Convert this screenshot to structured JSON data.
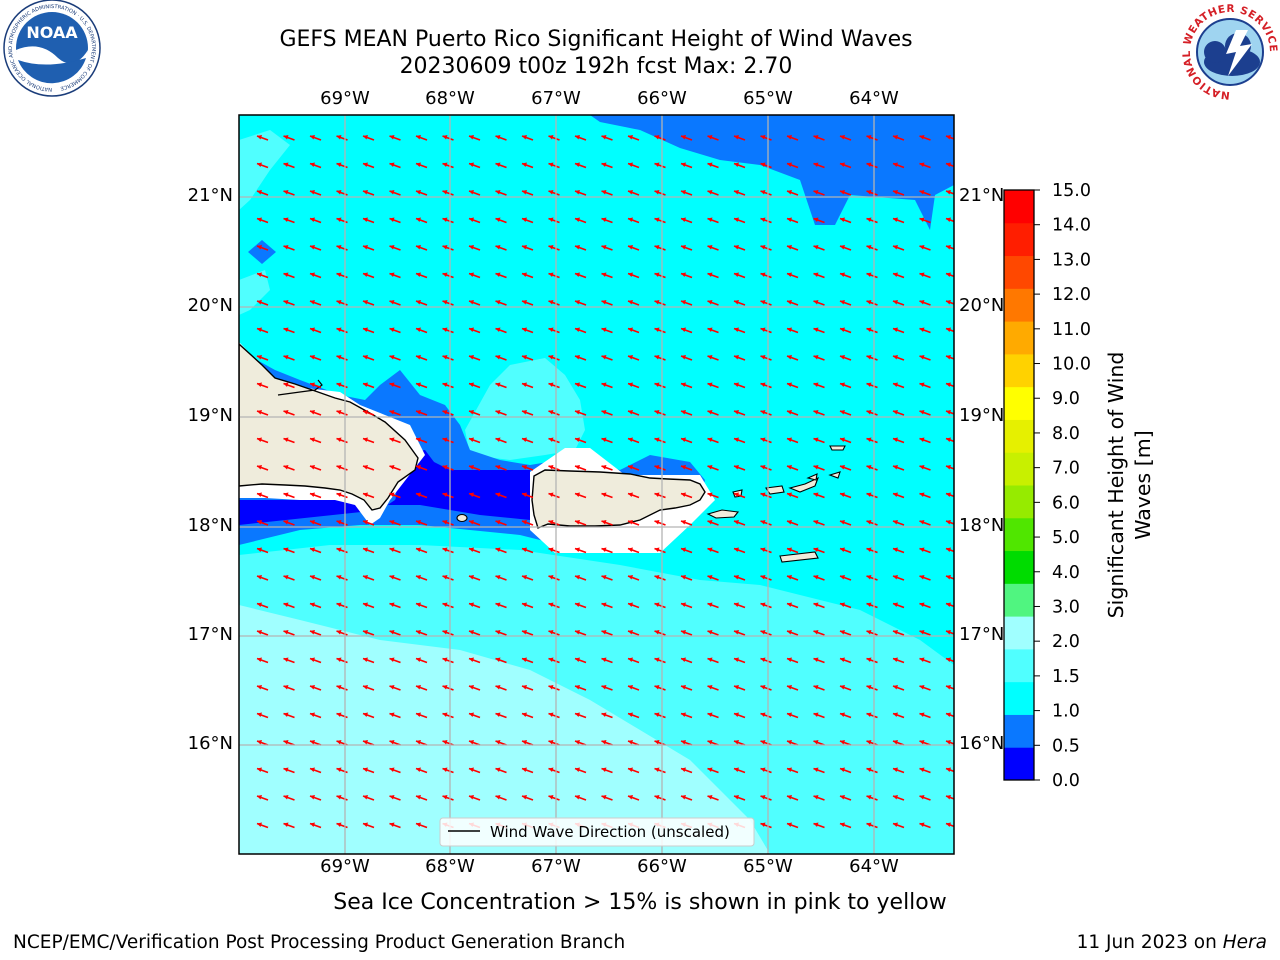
{
  "header": {
    "title_line1": "GEFS MEAN Puerto Rico Significant Height of Wind Waves",
    "title_line2": "20230609 t00z 192h fcst   Max: 2.70"
  },
  "logos": {
    "noaa_text": "NOAA",
    "noaa_ring_text": "NATIONAL OCEANIC AND ATMOSPHERIC ADMINISTRATION · U.S. DEPARTMENT OF COMMERCE",
    "nws_ring_text": "NATIONAL WEATHER SERVICE"
  },
  "axes": {
    "lon_labels": [
      "69°W",
      "68°W",
      "67°W",
      "66°W",
      "65°W",
      "64°W"
    ],
    "lat_labels": [
      "21°N",
      "20°N",
      "19°N",
      "18°N",
      "17°N",
      "16°N"
    ]
  },
  "legend": {
    "label": "Wind Wave Direction (unscaled)"
  },
  "colorbar": {
    "label_line1": "Significant Height of Wind",
    "label_line2": "Waves [m]",
    "ticks": [
      "15.0",
      "14.0",
      "13.0",
      "12.0",
      "11.0",
      "10.0",
      "9.0",
      "8.0",
      "7.0",
      "6.0",
      "5.0",
      "4.0",
      "3.0",
      "2.0",
      "1.5",
      "1.0",
      "0.5",
      "0.0"
    ],
    "colors_bottom_to_top": [
      "#0000ff",
      "#0a78ff",
      "#00ffff",
      "#50ffff",
      "#a0ffff",
      "#50f580",
      "#00dc00",
      "#50e600",
      "#96eb00",
      "#c8f000",
      "#e6f000",
      "#ffff00",
      "#ffd200",
      "#ffaa00",
      "#ff7800",
      "#ff4800",
      "#ff1e00",
      "#ff0000"
    ]
  },
  "colors": {
    "land": "#efecdc",
    "arrow": "#ff0000",
    "grid": "#b4b4b4"
  },
  "sea_ice_note": "Sea Ice Concentration > 15% is shown in pink to yellow",
  "footer": {
    "left": "NCEP/EMC/Verification Post Processing Product Generation Branch",
    "date": "11 Jun 2023 on ",
    "host": "Hera"
  }
}
